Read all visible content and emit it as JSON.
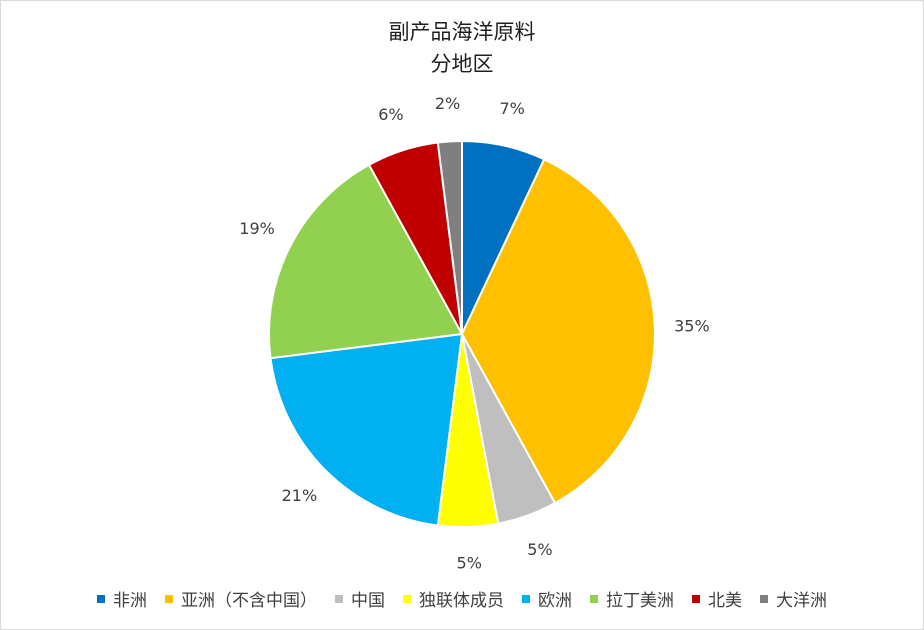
{
  "chart_data": {
    "type": "pie",
    "title": [
      "副产品海洋原料",
      "分地区"
    ],
    "categories": [
      "非洲",
      "亚洲（不含中国）",
      "中国",
      "独联体成员",
      "欧洲",
      "拉丁美洲",
      "北美",
      "大洋洲"
    ],
    "values": [
      7,
      35,
      5,
      5,
      21,
      19,
      6,
      2
    ],
    "data_labels": [
      "7%",
      "35%",
      "5%",
      "5%",
      "21%",
      "19%",
      "6%",
      "2%"
    ],
    "colors": [
      "#0070C0",
      "#FFC000",
      "#BFBFBF",
      "#FFFF00",
      "#00B0F0",
      "#92D050",
      "#C00000",
      "#7F7F7F"
    ],
    "legend_position": "bottom",
    "start_angle_deg": 0,
    "direction": "clockwise"
  }
}
